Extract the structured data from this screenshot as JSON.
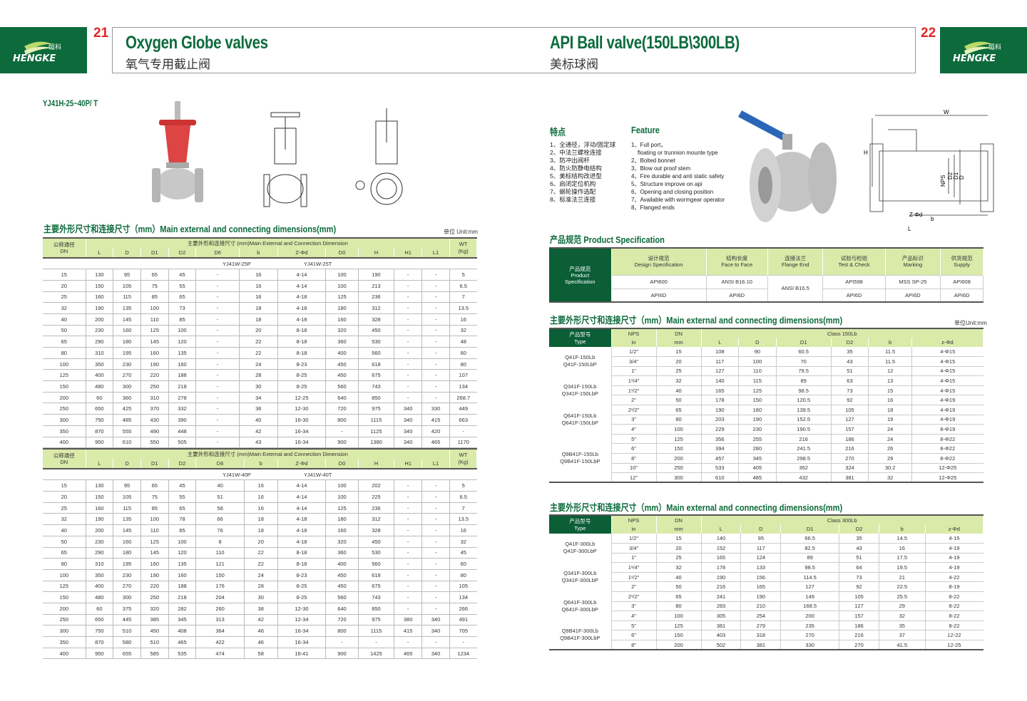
{
  "brand": {
    "name_cn": "恒科",
    "name_en": "HENGKE",
    "color": "#0c6a3b"
  },
  "left_page": {
    "page_number": "21",
    "title": "Oxygen Globe valves",
    "subtitle": "氧气专用截止阀",
    "model": "YJ41H-25~40P/ T",
    "section_title": "主要外形尺寸和连接尺寸（mm）Main external and connecting dimensions(mm)",
    "unit": "单位 Unit:mm",
    "table_header": {
      "dn": "公称通径",
      "dn_en": "DN",
      "group": "主要外形和连接尺寸 (mm)Main External and Connection Dimension",
      "wt": "WT",
      "wt_unit": "(Kg)",
      "columns": [
        "L",
        "D",
        "D1",
        "D2",
        "D6",
        "b",
        "Z-Φd",
        "D0",
        "H",
        "H1",
        "L1"
      ]
    },
    "tables": [
      {
        "models": [
          "YJ41W-25P",
          "YJ41W-25T"
        ],
        "rows": [
          [
            "15",
            "130",
            "95",
            "65",
            "45",
            "-",
            "16",
            "4-14",
            "100",
            "190",
            "-",
            "-",
            "5"
          ],
          [
            "20",
            "150",
            "105",
            "75",
            "55",
            "-",
            "16",
            "4-14",
            "100",
            "213",
            "-",
            "-",
            "6.5"
          ],
          [
            "25",
            "160",
            "115",
            "85",
            "65",
            "-",
            "16",
            "4-18",
            "125",
            "236",
            "-",
            "-",
            "7"
          ],
          [
            "32",
            "190",
            "135",
            "100",
            "73",
            "-",
            "18",
            "4-18",
            "180",
            "312",
            "-",
            "-",
            "13.5"
          ],
          [
            "40",
            "200",
            "145",
            "110",
            "85",
            "-",
            "18",
            "4-18",
            "160",
            "328",
            "-",
            "-",
            "16"
          ],
          [
            "50",
            "230",
            "160",
            "125",
            "100",
            "-",
            "20",
            "8-18",
            "320",
            "450",
            "-",
            "-",
            "32"
          ],
          [
            "65",
            "290",
            "180",
            "145",
            "120",
            "-",
            "22",
            "8-18",
            "360",
            "530",
            "-",
            "-",
            "48"
          ],
          [
            "80",
            "310",
            "195",
            "160",
            "135",
            "-",
            "22",
            "8-18",
            "400",
            "560",
            "-",
            "-",
            "60"
          ],
          [
            "100",
            "350",
            "230",
            "190",
            "160",
            "-",
            "24",
            "8-23",
            "450",
            "618",
            "-",
            "-",
            "80"
          ],
          [
            "125",
            "400",
            "270",
            "220",
            "188",
            "-",
            "28",
            "8-25",
            "450",
            "675",
            "-",
            "-",
            "107"
          ],
          [
            "150",
            "480",
            "300",
            "250",
            "218",
            "-",
            "30",
            "8-25",
            "560",
            "743",
            "-",
            "-",
            "134"
          ],
          [
            "200",
            "60",
            "360",
            "310",
            "278",
            "-",
            "34",
            "12-25",
            "640",
            "850",
            "-",
            "-",
            "268.7"
          ],
          [
            "250",
            "650",
            "425",
            "370",
            "332",
            "-",
            "36",
            "12-30",
            "720",
            "975",
            "340",
            "330",
            "449"
          ],
          [
            "300",
            "750",
            "485",
            "430",
            "390",
            "-",
            "40",
            "16-30",
            "800",
            "1115",
            "340",
            "415",
            "663"
          ],
          [
            "350",
            "870",
            "555",
            "490",
            "448",
            "-",
            "42",
            "16-34",
            "-",
            "1125",
            "340",
            "420",
            "-"
          ],
          [
            "400",
            "950",
            "610",
            "550",
            "505",
            "-",
            "43",
            "16-34",
            "900",
            "1380",
            "340",
            "465",
            "1170"
          ]
        ]
      },
      {
        "models": [
          "YJ41W-40P",
          "YJ41W-40T"
        ],
        "rows": [
          [
            "15",
            "130",
            "95",
            "65",
            "45",
            "40",
            "16",
            "4-14",
            "100",
            "202",
            "-",
            "-",
            "5"
          ],
          [
            "20",
            "150",
            "105",
            "75",
            "55",
            "51",
            "16",
            "4-14",
            "100",
            "225",
            "-",
            "-",
            "6.5"
          ],
          [
            "25",
            "160",
            "115",
            "85",
            "65",
            "58",
            "16",
            "4-14",
            "125",
            "236",
            "-",
            "-",
            "7"
          ],
          [
            "32",
            "190",
            "135",
            "100",
            "78",
            "66",
            "18",
            "4-18",
            "180",
            "312",
            "-",
            "-",
            "13.5"
          ],
          [
            "40",
            "200",
            "145",
            "110",
            "85",
            "76",
            "18",
            "4-18",
            "160",
            "328",
            "-",
            "-",
            "16"
          ],
          [
            "50",
            "230",
            "160",
            "125",
            "100",
            "8",
            "20",
            "4-18",
            "320",
            "450",
            "-",
            "-",
            "32"
          ],
          [
            "65",
            "290",
            "180",
            "145",
            "120",
            "110",
            "22",
            "8-18",
            "360",
            "530",
            "-",
            "-",
            "45"
          ],
          [
            "80",
            "310",
            "195",
            "160",
            "135",
            "121",
            "22",
            "8-18",
            "400",
            "560",
            "-",
            "-",
            "60"
          ],
          [
            "100",
            "350",
            "230",
            "190",
            "160",
            "150",
            "24",
            "8-23",
            "450",
            "618",
            "-",
            "-",
            "80"
          ],
          [
            "125",
            "400",
            "270",
            "220",
            "188",
            "176",
            "28",
            "8-25",
            "450",
            "675",
            "-",
            "-",
            "105"
          ],
          [
            "150",
            "480",
            "300",
            "250",
            "218",
            "204",
            "30",
            "8-25",
            "560",
            "743",
            "-",
            "-",
            "134"
          ],
          [
            "200",
            "60",
            "375",
            "320",
            "282",
            "260",
            "38",
            "12-30",
            "640",
            "850",
            "-",
            "-",
            "266"
          ],
          [
            "250",
            "650",
            "445",
            "385",
            "345",
            "313",
            "42",
            "12-34",
            "720",
            "975",
            "380",
            "340",
            "491"
          ],
          [
            "300",
            "750",
            "510",
            "450",
            "408",
            "364",
            "46",
            "16-34",
            "800",
            "1115",
            "415",
            "340",
            "705"
          ],
          [
            "350",
            "870",
            "580",
            "510",
            "465",
            "422",
            "46",
            "16-34",
            "-",
            "-",
            "-",
            "-",
            "-"
          ],
          [
            "400",
            "950",
            "655",
            "585",
            "535",
            "474",
            "58",
            "16-41",
            "900",
            "1425",
            "465",
            "340",
            "1234"
          ]
        ]
      }
    ]
  },
  "right_page": {
    "page_number": "22",
    "title": "API Ball valve(150LB\\300LB)",
    "subtitle": "美标球阀",
    "features_cn_title": "特点",
    "features_en_title": "Feature",
    "features_cn": [
      "1、全通径，浮动/固定球",
      "2、中法兰螺栓连接",
      "3、防冲出阀杆",
      "4、防火防静电结构",
      "5、美标结构改进型",
      "6、启闭定位机构",
      "7、蜗轮操作选配",
      "8、标准法兰连接"
    ],
    "features_en": [
      "1、Full port，",
      "    floating or trunnion mounte type",
      "2、Bolted bonnet",
      "3、Blow out proof stem",
      "4、Fire durable and anti static safety",
      "5、Structure improve on api",
      "6、Opening and closing position",
      "7、Available with wormgear operator",
      "8、Flanged ends"
    ],
    "diagram_labels": [
      "W",
      "H",
      "NPS",
      "D2",
      "D1",
      "D",
      "Z-Φd",
      "b",
      "L"
    ],
    "spec_title": "产品规范  Product Specification",
    "spec": {
      "row_header_cn": "产品规范",
      "row_header_en": "Product Specification",
      "columns": [
        [
          "设计规范",
          "Design Specification"
        ],
        [
          "结构长度",
          "Face to Face"
        ],
        [
          "连接法兰",
          "Flange End"
        ],
        [
          "试验与检验",
          "Test & Check"
        ],
        [
          "产品标识",
          "Marking"
        ],
        [
          "供货规范",
          "Supply"
        ]
      ],
      "rows": [
        [
          "API600",
          "ANSI B16.10",
          "ANSI B16.5",
          "API598",
          "MSS SP-25",
          "API608"
        ],
        [
          "API6D",
          "API6D",
          "",
          "API6D",
          "API6D",
          "API6D"
        ]
      ]
    },
    "dims_title": "主要外形尺寸和连接尺寸（mm）Main external and connecting dimensions(mm)",
    "unit": "单位Unit:mm",
    "dim_header": {
      "type_cn": "产品型号",
      "type_en": "Type",
      "nps": "NPS",
      "nps_unit": "in",
      "dn": "DN",
      "dn_unit": "mm",
      "columns": [
        "L",
        "D",
        "D1",
        "D2",
        "b",
        "z-Φd"
      ]
    },
    "tables": [
      {
        "class": "Class 150Lb",
        "types": [
          [
            "Q41F-150Lb",
            "Q41F-150LbP"
          ],
          [
            "Q341F-150Lb",
            "Q341F-150LbP"
          ],
          [
            "Q641F-150Lb",
            "Q641F-150LbP"
          ],
          [
            "Q9B41F-150Lb",
            "Q9B41F-150LbP"
          ]
        ],
        "rows": [
          [
            "1/2\"",
            "15",
            "108",
            "90",
            "60.5",
            "35",
            "11.5",
            "4-Φ15"
          ],
          [
            "3/4\"",
            "20",
            "117",
            "100",
            "70",
            "43",
            "11.5",
            "4-Φ15"
          ],
          [
            "1\"",
            "25",
            "127",
            "110",
            "79.5",
            "51",
            "12",
            "4-Φ15"
          ],
          [
            "1¹/4\"",
            "32",
            "140",
            "115",
            "89",
            "63",
            "13",
            "4-Φ15"
          ],
          [
            "1¹/2\"",
            "40",
            "165",
            "125",
            "98.5",
            "73",
            "15",
            "4-Φ15"
          ],
          [
            "2\"",
            "50",
            "178",
            "150",
            "120.5",
            "92",
            "16",
            "4-Φ19"
          ],
          [
            "2¹/2\"",
            "65",
            "190",
            "180",
            "139.5",
            "105",
            "18",
            "4-Φ19"
          ],
          [
            "3\"",
            "80",
            "203",
            "190",
            "152.5",
            "127",
            "19",
            "4-Φ19"
          ],
          [
            "4\"",
            "100",
            "229",
            "230",
            "190.5",
            "157",
            "24",
            "8-Φ19"
          ],
          [
            "5\"",
            "125",
            "356",
            "255",
            "216",
            "186",
            "24",
            "8-Φ22"
          ],
          [
            "6\"",
            "150",
            "394",
            "280",
            "241.5",
            "216",
            "26",
            "8-Φ22"
          ],
          [
            "8\"",
            "200",
            "457",
            "345",
            "298.5",
            "270",
            "29",
            "8-Φ22"
          ],
          [
            "10\"",
            "250",
            "533",
            "405",
            "362",
            "324",
            "30.2",
            "12-Φ25"
          ],
          [
            "12\"",
            "300",
            "610",
            "485",
            "432",
            "381",
            "32",
            "12-Φ25"
          ]
        ]
      },
      {
        "class": "Class 300Lb",
        "types": [
          [
            "Q41F-300Lb",
            "Q41F-300LbP"
          ],
          [
            "Q341F-300Lb",
            "Q341F-300LbP"
          ],
          [
            "Q641F-300Lb",
            "Q641F-300LbP"
          ],
          [
            "Q9B41F-300Lb",
            "Q9B41F-300LbP"
          ]
        ],
        "rows": [
          [
            "1/2\"",
            "15",
            "140",
            "95",
            "66.5",
            "35",
            "14.5",
            "4-15"
          ],
          [
            "3/4\"",
            "20",
            "152",
            "117",
            "82.5",
            "43",
            "16",
            "4-19"
          ],
          [
            "1\"",
            "25",
            "165",
            "124",
            "89",
            "51",
            "17.5",
            "4-19"
          ],
          [
            "1¹/4\"",
            "32",
            "178",
            "133",
            "98.5",
            "64",
            "19.5",
            "4-19"
          ],
          [
            "1¹/2\"",
            "40",
            "190",
            "156",
            "114.5",
            "73",
            "21",
            "4-22"
          ],
          [
            "2\"",
            "50",
            "216",
            "165",
            "127",
            "92",
            "22.5",
            "8-19"
          ],
          [
            "2¹/2\"",
            "65",
            "241",
            "190",
            "149",
            "105",
            "25.5",
            "8-22"
          ],
          [
            "3\"",
            "80",
            "283",
            "210",
            "168.5",
            "127",
            "29",
            "8-22"
          ],
          [
            "4\"",
            "100",
            "305",
            "254",
            "200",
            "157",
            "32",
            "8-22"
          ],
          [
            "5\"",
            "125",
            "381",
            "279",
            "235",
            "186",
            "35",
            "8-22"
          ],
          [
            "6\"",
            "150",
            "403",
            "318",
            "270",
            "216",
            "37",
            "12-22"
          ],
          [
            "8\"",
            "200",
            "502",
            "381",
            "330",
            "270",
            "41.5",
            "12-25"
          ]
        ]
      }
    ]
  }
}
